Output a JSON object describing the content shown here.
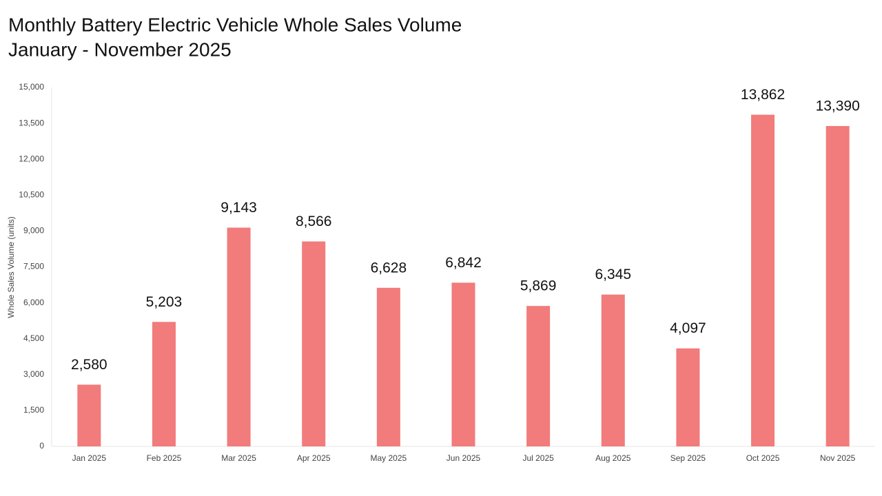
{
  "chart_data": {
    "type": "bar",
    "title": "Monthly Battery Electric Vehicle Whole Sales Volume",
    "subtitle": "January - November 2025",
    "y_label": "Whole Sales Volume (units)",
    "categories": [
      "Jan 2025",
      "Feb 2025",
      "Mar 2025",
      "Apr 2025",
      "May 2025",
      "Jun 2025",
      "Jul 2025",
      "Aug 2025",
      "Sep 2025",
      "Oct 2025",
      "Nov 2025"
    ],
    "values": [
      2580,
      5203,
      9143,
      8566,
      6628,
      6842,
      5869,
      6345,
      4097,
      13862,
      13390
    ],
    "value_labels": [
      "2,580",
      "5,203",
      "9,143",
      "8,566",
      "6,628",
      "6,842",
      "5,869",
      "6,345",
      "4,097",
      "13,862",
      "13,390"
    ],
    "color": "#f27b7b",
    "ylim": [
      0,
      15000
    ],
    "yticks": [
      0,
      {
        "value": 1500,
        "label": "1,500"
      },
      {
        "value": 3000,
        "label": "3,000"
      },
      {
        "value": 4500,
        "label": "4,500"
      },
      {
        "value": 6000,
        "label": "6,000"
      },
      {
        "value": 7500,
        "label": "7,500"
      },
      {
        "value": 9000,
        "label": "9,000"
      },
      {
        "value": 10500,
        "label": "10,500"
      },
      {
        "value": 12000,
        "label": "12,000"
      },
      {
        "value": 13500,
        "label": "13,500"
      },
      {
        "value": 15000,
        "label": "15,000"
      }
    ],
    "grid": false
  }
}
